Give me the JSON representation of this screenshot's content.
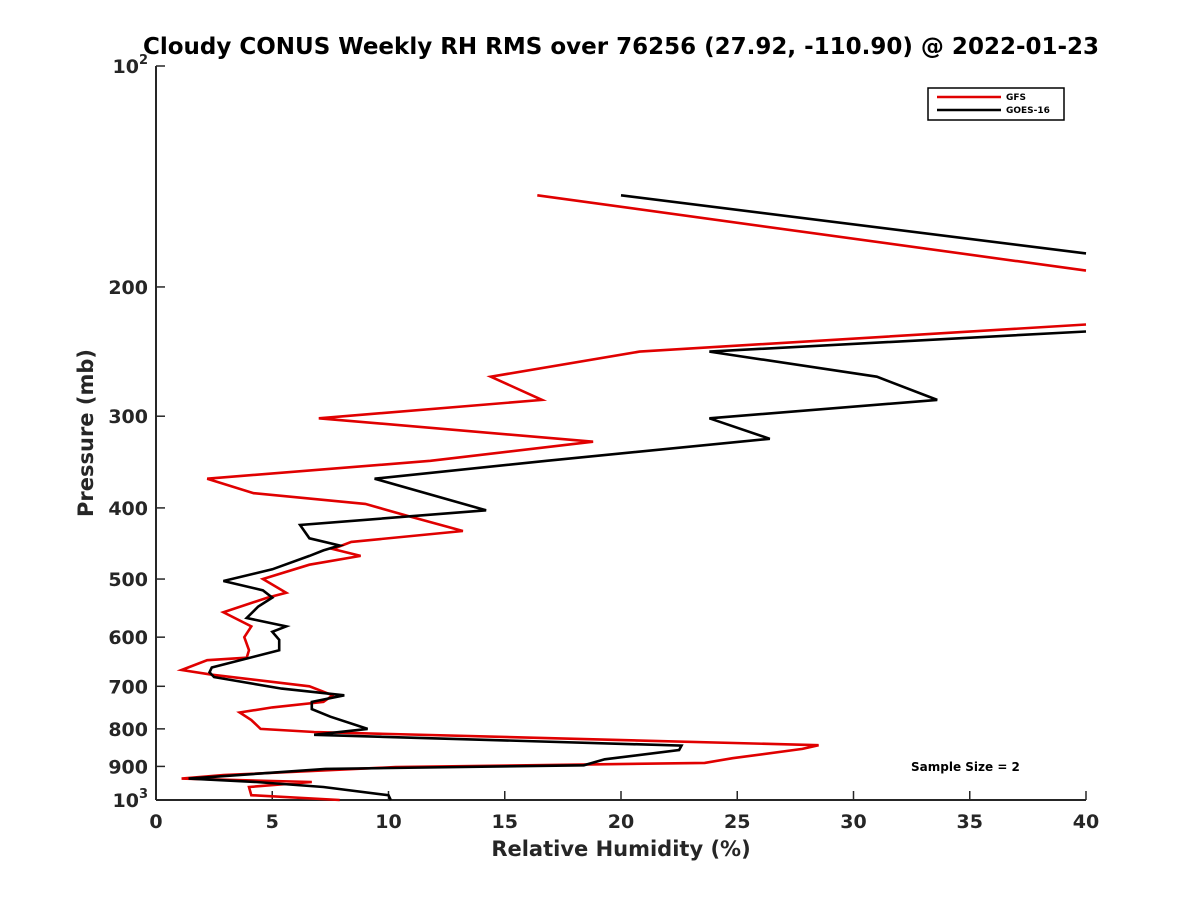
{
  "chart_data": {
    "type": "line",
    "title": "Cloudy CONUS Weekly RH RMS over 76256 (27.92, -110.90) @ 2022-01-23",
    "xlabel": "Relative Humidity (%)",
    "ylabel": "Pressure (mb)",
    "xlim": [
      0,
      40
    ],
    "ylim": [
      100,
      1000
    ],
    "yscale": "log",
    "y_reversed": true,
    "xticks": [
      0,
      5,
      10,
      15,
      20,
      25,
      30,
      35,
      40
    ],
    "xtick_labels": [
      "0",
      "5",
      "10",
      "15",
      "20",
      "25",
      "30",
      "35",
      "40"
    ],
    "yticks": [
      100,
      200,
      300,
      400,
      500,
      600,
      700,
      800,
      900,
      1000
    ],
    "ytick_labels": [
      {
        "base": "10",
        "exp": "2"
      },
      {
        "base": "200",
        "exp": ""
      },
      {
        "base": "300",
        "exp": ""
      },
      {
        "base": "400",
        "exp": ""
      },
      {
        "base": "500",
        "exp": ""
      },
      {
        "base": "600",
        "exp": ""
      },
      {
        "base": "700",
        "exp": ""
      },
      {
        "base": "800",
        "exp": ""
      },
      {
        "base": "900",
        "exp": ""
      },
      {
        "base": "10",
        "exp": "3"
      }
    ],
    "grid": false,
    "legend": {
      "position": "top-right",
      "entries": [
        "GFS",
        "GOES-16"
      ]
    },
    "annotations": [
      "Sample Size = 2"
    ],
    "series": [
      {
        "name": "GFS",
        "color": "#e00000",
        "segments": [
          [
            [
              16.4,
              150
            ],
            [
              40,
              190
            ]
          ],
          [
            [
              40,
              225
            ],
            [
              20.8,
              245
            ],
            [
              14.4,
              265
            ],
            [
              16.6,
              285
            ],
            [
              7,
              302
            ],
            [
              18.8,
              325
            ],
            [
              11.8,
              345
            ],
            [
              2.2,
              365
            ],
            [
              4.2,
              382
            ],
            [
              9,
              395
            ],
            [
              10.8,
              410
            ],
            [
              13.2,
              430
            ],
            [
              8.4,
              445
            ],
            [
              7.6,
              455
            ],
            [
              8.8,
              465
            ],
            [
              6.6,
              478
            ],
            [
              4.6,
              500
            ],
            [
              5.6,
              522
            ],
            [
              4.8,
              530
            ],
            [
              2.9,
              555
            ],
            [
              4.1,
              580
            ],
            [
              3.8,
              600
            ],
            [
              4.0,
              625
            ],
            [
              3.9,
              640
            ],
            [
              2.2,
              645
            ],
            [
              1.1,
              665
            ],
            [
              2.4,
              675
            ],
            [
              6.6,
              700
            ],
            [
              7.6,
              720
            ],
            [
              7.2,
              735
            ],
            [
              5.0,
              748
            ],
            [
              3.6,
              760
            ],
            [
              4.1,
              778
            ],
            [
              4.5,
              800
            ],
            [
              6.8,
              808
            ],
            [
              28.5,
              842
            ],
            [
              27.8,
              852
            ],
            [
              24.8,
              877
            ],
            [
              23.6,
              890
            ],
            [
              10.3,
              902
            ],
            [
              2.9,
              925
            ],
            [
              1.1,
              935
            ],
            [
              6.7,
              945
            ],
            [
              4.0,
              960
            ],
            [
              4.1,
              985
            ],
            [
              7.9,
              1000
            ]
          ]
        ]
      },
      {
        "name": "GOES-16",
        "color": "#000000",
        "segments": [
          [
            [
              20,
              150
            ],
            [
              40,
              180
            ]
          ],
          [
            [
              40,
              230
            ],
            [
              23.8,
              245
            ],
            [
              31,
              265
            ],
            [
              33.6,
              285
            ],
            [
              23.8,
              302
            ],
            [
              26.4,
              322
            ],
            [
              16.8,
              345
            ],
            [
              9.4,
              365
            ],
            [
              14.2,
              403
            ],
            [
              6.2,
              422
            ],
            [
              6.6,
              440
            ],
            [
              7.9,
              450
            ],
            [
              7.2,
              457
            ],
            [
              6.6,
              465
            ],
            [
              5.0,
              485
            ],
            [
              2.9,
              503
            ],
            [
              4.6,
              518
            ],
            [
              5.0,
              530
            ],
            [
              4.4,
              545
            ],
            [
              3.9,
              565
            ],
            [
              5.6,
              580
            ],
            [
              5.0,
              590
            ],
            [
              5.3,
              605
            ],
            [
              5.3,
              625
            ],
            [
              2.4,
              660
            ],
            [
              2.3,
              670
            ],
            [
              2.5,
              680
            ],
            [
              5.4,
              705
            ],
            [
              8.1,
              720
            ],
            [
              6.7,
              735
            ],
            [
              6.7,
              752
            ],
            [
              7.5,
              770
            ],
            [
              9.1,
              800
            ],
            [
              6.8,
              815
            ],
            [
              22.6,
              843
            ],
            [
              22.5,
              855
            ],
            [
              19.3,
              880
            ],
            [
              18.4,
              897
            ],
            [
              7.3,
              907
            ],
            [
              1.4,
              935
            ],
            [
              4.3,
              945
            ],
            [
              7.2,
              960
            ],
            [
              10.0,
              985
            ],
            [
              10.1,
              1000
            ]
          ]
        ]
      }
    ]
  }
}
